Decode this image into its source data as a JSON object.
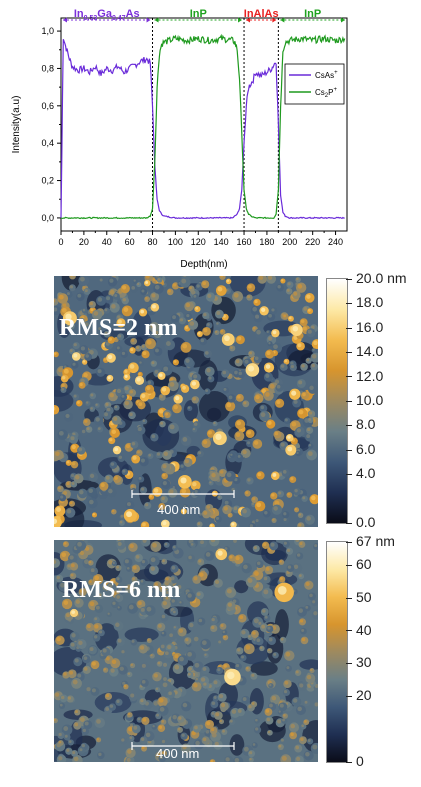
{
  "chart_data": {
    "type": "line",
    "xlabel": "Depth(nm)",
    "ylabel": "Intensity(a.u)",
    "xlim": [
      0,
      250
    ],
    "ylim": [
      -0.07,
      1.07
    ],
    "x_ticks": [
      "0",
      "20",
      "40",
      "60",
      "80",
      "100",
      "120",
      "140",
      "160",
      "180",
      "200",
      "220",
      "240"
    ],
    "y_ticks": [
      "0,0",
      "0,2",
      "0,4",
      "0,6",
      "0,8",
      "1,0"
    ],
    "grid": false,
    "legend_position": "right",
    "layer_boundaries": [
      80,
      160,
      190
    ],
    "layers": [
      {
        "name_main": "In",
        "sub1": "0.53",
        "mid": "Ga",
        "sub2": "0.47",
        "tail": "As",
        "color": "#7B2FD9",
        "x_start": 0,
        "x_end": 80
      },
      {
        "name_main": "InP",
        "color": "#1FA21F",
        "x_start": 80,
        "x_end": 160
      },
      {
        "name_main": "InAlAs",
        "color": "#E82020",
        "x_start": 160,
        "x_end": 190
      },
      {
        "name_main": "InP",
        "color": "#1FA21F",
        "x_start": 190,
        "x_end": 250
      }
    ],
    "series": [
      {
        "name": "CsAs",
        "superscript": "+",
        "color": "#6A2BD9",
        "x": [
          0,
          2,
          4,
          6,
          8,
          10,
          15,
          20,
          25,
          30,
          35,
          40,
          45,
          50,
          55,
          60,
          65,
          70,
          75,
          78,
          80,
          82,
          84,
          86,
          88,
          90,
          100,
          110,
          120,
          130,
          140,
          150,
          152,
          154,
          156,
          158,
          160,
          162,
          164,
          166,
          168,
          170,
          175,
          180,
          184,
          186,
          188,
          190,
          192,
          194,
          196,
          200,
          210,
          220,
          230,
          240,
          248
        ],
        "values": [
          0.0,
          0.97,
          0.92,
          0.88,
          0.84,
          0.81,
          0.79,
          0.8,
          0.78,
          0.81,
          0.77,
          0.8,
          0.79,
          0.81,
          0.78,
          0.8,
          0.82,
          0.84,
          0.85,
          0.83,
          0.6,
          0.28,
          0.1,
          0.04,
          0.02,
          0.01,
          0.0,
          0.0,
          0.0,
          0.0,
          0.0,
          0.0,
          0.01,
          0.02,
          0.05,
          0.15,
          0.4,
          0.6,
          0.7,
          0.72,
          0.74,
          0.78,
          0.76,
          0.78,
          0.8,
          0.82,
          0.84,
          0.5,
          0.12,
          0.03,
          0.01,
          0.0,
          0.0,
          0.0,
          0.0,
          0.0,
          0.0
        ]
      },
      {
        "name": "Cs",
        "sub": "2",
        "name_tail": "P",
        "superscript": "+",
        "color": "#1F9A1F",
        "x": [
          0,
          10,
          20,
          30,
          40,
          50,
          60,
          70,
          75,
          78,
          80,
          82,
          84,
          86,
          88,
          90,
          95,
          100,
          110,
          120,
          130,
          140,
          150,
          152,
          154,
          156,
          158,
          160,
          162,
          164,
          166,
          170,
          180,
          186,
          188,
          190,
          192,
          194,
          196,
          200,
          210,
          220,
          230,
          240,
          248
        ],
        "values": [
          0.0,
          0.0,
          0.0,
          0.0,
          0.0,
          0.0,
          0.0,
          0.0,
          0.0,
          0.01,
          0.05,
          0.3,
          0.7,
          0.88,
          0.93,
          0.94,
          0.95,
          0.96,
          0.95,
          0.96,
          0.95,
          0.96,
          0.95,
          0.94,
          0.9,
          0.75,
          0.45,
          0.15,
          0.05,
          0.02,
          0.01,
          0.0,
          0.0,
          0.0,
          0.02,
          0.15,
          0.6,
          0.9,
          0.94,
          0.95,
          0.96,
          0.95,
          0.96,
          0.95,
          0.96
        ]
      }
    ]
  },
  "afm_images": [
    {
      "rms_label": "RMS=2 nm",
      "scale_bar_label": "400 nm",
      "colorbar_ticks": [
        "20.0 nm",
        "18.0",
        "16.0",
        "14.0",
        "12.0",
        "10.0",
        "8.0",
        "6.0",
        "4.0",
        "0.0"
      ]
    },
    {
      "rms_label": "RMS=6 nm",
      "scale_bar_label": "400 nm",
      "colorbar_ticks": [
        "67 nm",
        "60",
        "50",
        "40",
        "30",
        "20",
        "0"
      ]
    }
  ],
  "colormap": [
    "#0a0c18",
    "#1f2f52",
    "#3e5878",
    "#6a7f86",
    "#9e8a5f",
    "#d7952e",
    "#f3bb4f",
    "#fde9a6",
    "#ffffff"
  ]
}
